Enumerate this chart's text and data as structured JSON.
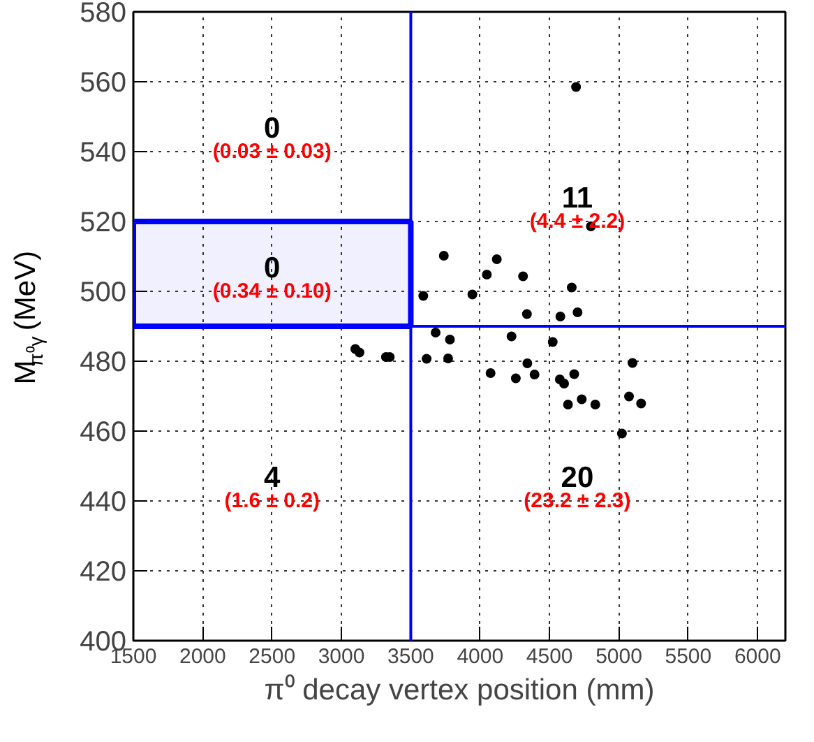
{
  "chart_data": {
    "type": "scatter",
    "xlabel": "π⁰ decay vertex position (mm)",
    "ylabel": "M$_{π⁰γ}$ (MeV)",
    "xlim": [
      1500,
      6200
    ],
    "ylim": [
      400,
      580
    ],
    "xticks": [
      1500,
      2000,
      2500,
      3000,
      3500,
      4000,
      4500,
      5000,
      5500,
      6000
    ],
    "yticks": [
      400,
      420,
      440,
      460,
      480,
      500,
      520,
      540,
      560,
      580
    ],
    "grid": true,
    "marker": "circle",
    "series": [
      {
        "color": "#000000",
        "x": [
          4691,
          4798,
          3738,
          4120,
          4048,
          4309,
          4660,
          3590,
          3944,
          4337,
          4578,
          4702,
          3679,
          3782,
          4226,
          4523,
          3321,
          3348,
          3100,
          3130,
          3614,
          3769,
          5098,
          4340,
          4075,
          4257,
          4392,
          4574,
          4605,
          4678,
          4633,
          4732,
          4830,
          5073,
          5160,
          5022
        ],
        "values": [
          558.5,
          518.6,
          510.2,
          509.2,
          504.8,
          504.3,
          501.1,
          498.7,
          499.1,
          493.5,
          492.8,
          494,
          488.2,
          486.2,
          487.1,
          485.5,
          481.2,
          481.2,
          483.5,
          482.5,
          480.7,
          480.8,
          479.5,
          479.4,
          476.6,
          475.1,
          476.2,
          474.8,
          473.6,
          476.3,
          467.6,
          469.1,
          467.6,
          469.9,
          467.9,
          459.3
        ]
      }
    ],
    "ref_lines": [
      {
        "axis": "x",
        "value": 3500,
        "color": "#0000ff"
      },
      {
        "axis": "y",
        "value": 490,
        "color": "#0000ff"
      }
    ],
    "bands": [
      {
        "axis": "y",
        "from": 490,
        "to": 520,
        "color": "#0000ff"
      }
    ],
    "annotations": [
      "0",
      "(0.03 ± 0.03)",
      "11",
      "(4.4 ± 2.2)",
      "0",
      "(0.34 ± 0.10)",
      "4",
      "(1.6 ± 0.2)",
      "20",
      "(23.2 ± 2.3)"
    ]
  }
}
